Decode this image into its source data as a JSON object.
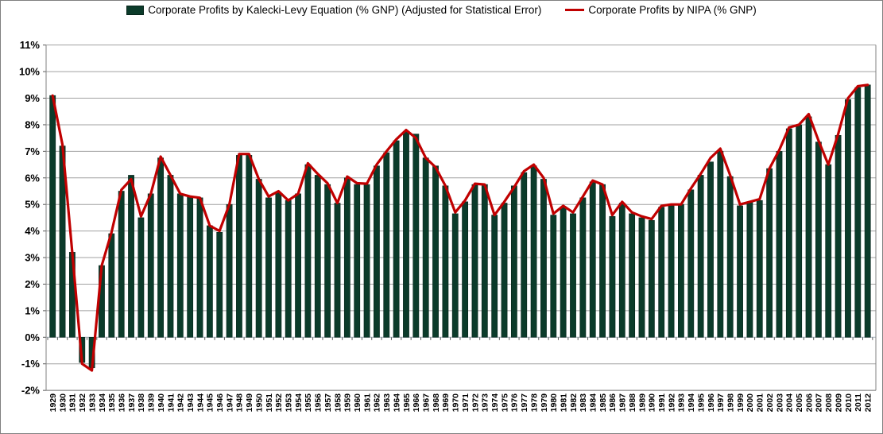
{
  "legend": {
    "kalecki_label": "Corporate Profits by Kalecki-Levy Equation (% GNP) (Adjusted for Statistical Error)",
    "nipa_label": "Corporate Profits by NIPA (% GNP)"
  },
  "colors": {
    "bar": "#0b3b2a",
    "bar_border": "#06241a",
    "line": "#c00000",
    "gridline": "#a0a0a0",
    "zero_axis": "#a9b6bf",
    "frame": "#808080",
    "tick": "#595959",
    "text": "#000000",
    "background": "#ffffff"
  },
  "chart_data": {
    "type": "bar",
    "note_visual": "dark-green vertical bars with overlaid red line, gridlines on, legend at top",
    "x": [
      1929,
      1930,
      1931,
      1932,
      1933,
      1934,
      1935,
      1936,
      1937,
      1938,
      1939,
      1940,
      1941,
      1942,
      1943,
      1944,
      1945,
      1946,
      1947,
      1948,
      1949,
      1950,
      1951,
      1952,
      1953,
      1954,
      1955,
      1956,
      1957,
      1958,
      1959,
      1960,
      1961,
      1962,
      1963,
      1964,
      1965,
      1966,
      1967,
      1968,
      1969,
      1970,
      1971,
      1972,
      1973,
      1974,
      1975,
      1976,
      1977,
      1978,
      1979,
      1980,
      1981,
      1982,
      1983,
      1984,
      1985,
      1986,
      1987,
      1988,
      1989,
      1990,
      1991,
      1992,
      1993,
      1994,
      1995,
      1996,
      1997,
      1998,
      1999,
      2000,
      2001,
      2002,
      2003,
      2004,
      2005,
      2006,
      2007,
      2008,
      2009,
      2010,
      2011,
      2012
    ],
    "series": [
      {
        "name": "Corporate Profits by Kalecki-Levy Equation (% GNP) (Adjusted for Statistical Error)",
        "type": "bar",
        "values": [
          9.1,
          7.2,
          3.2,
          -0.95,
          -1.15,
          2.7,
          3.9,
          5.5,
          6.1,
          4.5,
          5.4,
          6.75,
          6.1,
          5.4,
          5.3,
          5.25,
          4.2,
          3.95,
          5.0,
          6.85,
          6.85,
          5.95,
          5.25,
          5.45,
          5.15,
          5.4,
          6.5,
          6.1,
          5.75,
          5.05,
          6.0,
          5.75,
          5.75,
          6.45,
          6.95,
          7.4,
          7.75,
          7.65,
          6.75,
          6.45,
          5.7,
          4.65,
          5.1,
          5.75,
          5.75,
          4.6,
          5.05,
          5.7,
          6.2,
          6.45,
          5.95,
          4.6,
          4.9,
          4.65,
          5.25,
          5.85,
          5.75,
          4.55,
          5.05,
          4.65,
          4.5,
          4.4,
          4.9,
          4.95,
          5.0,
          5.55,
          6.1,
          6.6,
          7.0,
          6.05,
          4.95,
          5.1,
          5.15,
          6.35,
          7.0,
          7.85,
          8.0,
          8.3,
          7.35,
          6.5,
          7.6,
          8.95,
          9.4,
          9.5
        ]
      },
      {
        "name": "Corporate Profits by NIPA (% GNP)",
        "type": "line",
        "values": [
          9.1,
          7.25,
          3.2,
          -1.0,
          -1.25,
          2.7,
          3.95,
          5.55,
          5.95,
          4.55,
          5.4,
          6.8,
          6.1,
          5.4,
          5.3,
          5.25,
          4.2,
          4.0,
          5.0,
          6.9,
          6.9,
          5.95,
          5.3,
          5.5,
          5.15,
          5.4,
          6.55,
          6.15,
          5.8,
          5.05,
          6.05,
          5.8,
          5.78,
          6.5,
          7.0,
          7.45,
          7.8,
          7.5,
          6.75,
          6.4,
          5.7,
          4.7,
          5.15,
          5.78,
          5.75,
          4.6,
          5.1,
          5.65,
          6.25,
          6.5,
          6.0,
          4.65,
          4.95,
          4.7,
          5.3,
          5.9,
          5.75,
          4.6,
          5.1,
          4.7,
          4.55,
          4.45,
          4.95,
          5.0,
          5.0,
          5.6,
          6.15,
          6.75,
          7.1,
          6.1,
          5.0,
          5.1,
          5.2,
          6.35,
          7.05,
          7.9,
          8.0,
          8.4,
          7.4,
          6.5,
          7.65,
          9.0,
          9.45,
          9.5
        ]
      }
    ],
    "y_axis": {
      "min": -2,
      "max": 11,
      "step": 1,
      "tick_labels": [
        "11%",
        "10%",
        "9%",
        "8%",
        "7%",
        "6%",
        "5%",
        "4%",
        "3%",
        "2%",
        "1%",
        "0%",
        "-1%",
        "-2%"
      ]
    },
    "x_axis": {
      "tick_labels": [
        "1929",
        "1930",
        "1931",
        "1932",
        "1933",
        "1934",
        "1935",
        "1936",
        "1937",
        "1938",
        "1939",
        "1940",
        "1941",
        "1942",
        "1943",
        "1944",
        "1945",
        "1946",
        "1947",
        "1948",
        "1949",
        "1950",
        "1951",
        "1952",
        "1953",
        "1954",
        "1955",
        "1956",
        "1957",
        "1958",
        "1959",
        "1960",
        "1961",
        "1962",
        "1963",
        "1964",
        "1965",
        "1966",
        "1967",
        "1968",
        "1969",
        "1970",
        "1971",
        "1972",
        "1973",
        "1974",
        "1975",
        "1976",
        "1977",
        "1978",
        "1979",
        "1980",
        "1981",
        "1982",
        "1983",
        "1984",
        "1985",
        "1986",
        "1987",
        "1988",
        "1989",
        "1990",
        "1991",
        "1992",
        "1993",
        "1994",
        "1995",
        "1996",
        "1997",
        "1998",
        "1999",
        "2000",
        "2001",
        "2002",
        "2003",
        "2004",
        "2005",
        "2006",
        "2007",
        "2008",
        "2009",
        "2010",
        "2011",
        "2012"
      ]
    },
    "grid": true,
    "legend_position": "top"
  }
}
